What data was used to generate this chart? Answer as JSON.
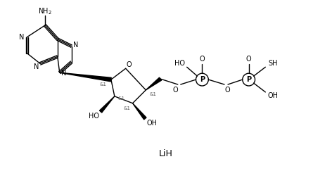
{
  "background_color": "#ffffff",
  "line_color": "#000000",
  "text_color": "#000000",
  "figure_width": 4.72,
  "figure_height": 2.43,
  "dpi": 100,
  "LiH_label": "LiH",
  "NH2_label": "NH$_2$",
  "O_label": "O",
  "N_label": "N",
  "P_label": "P",
  "HO_label": "HO",
  "OH_label": "OH",
  "SH_label": "SH",
  "stereo_label": "&1"
}
